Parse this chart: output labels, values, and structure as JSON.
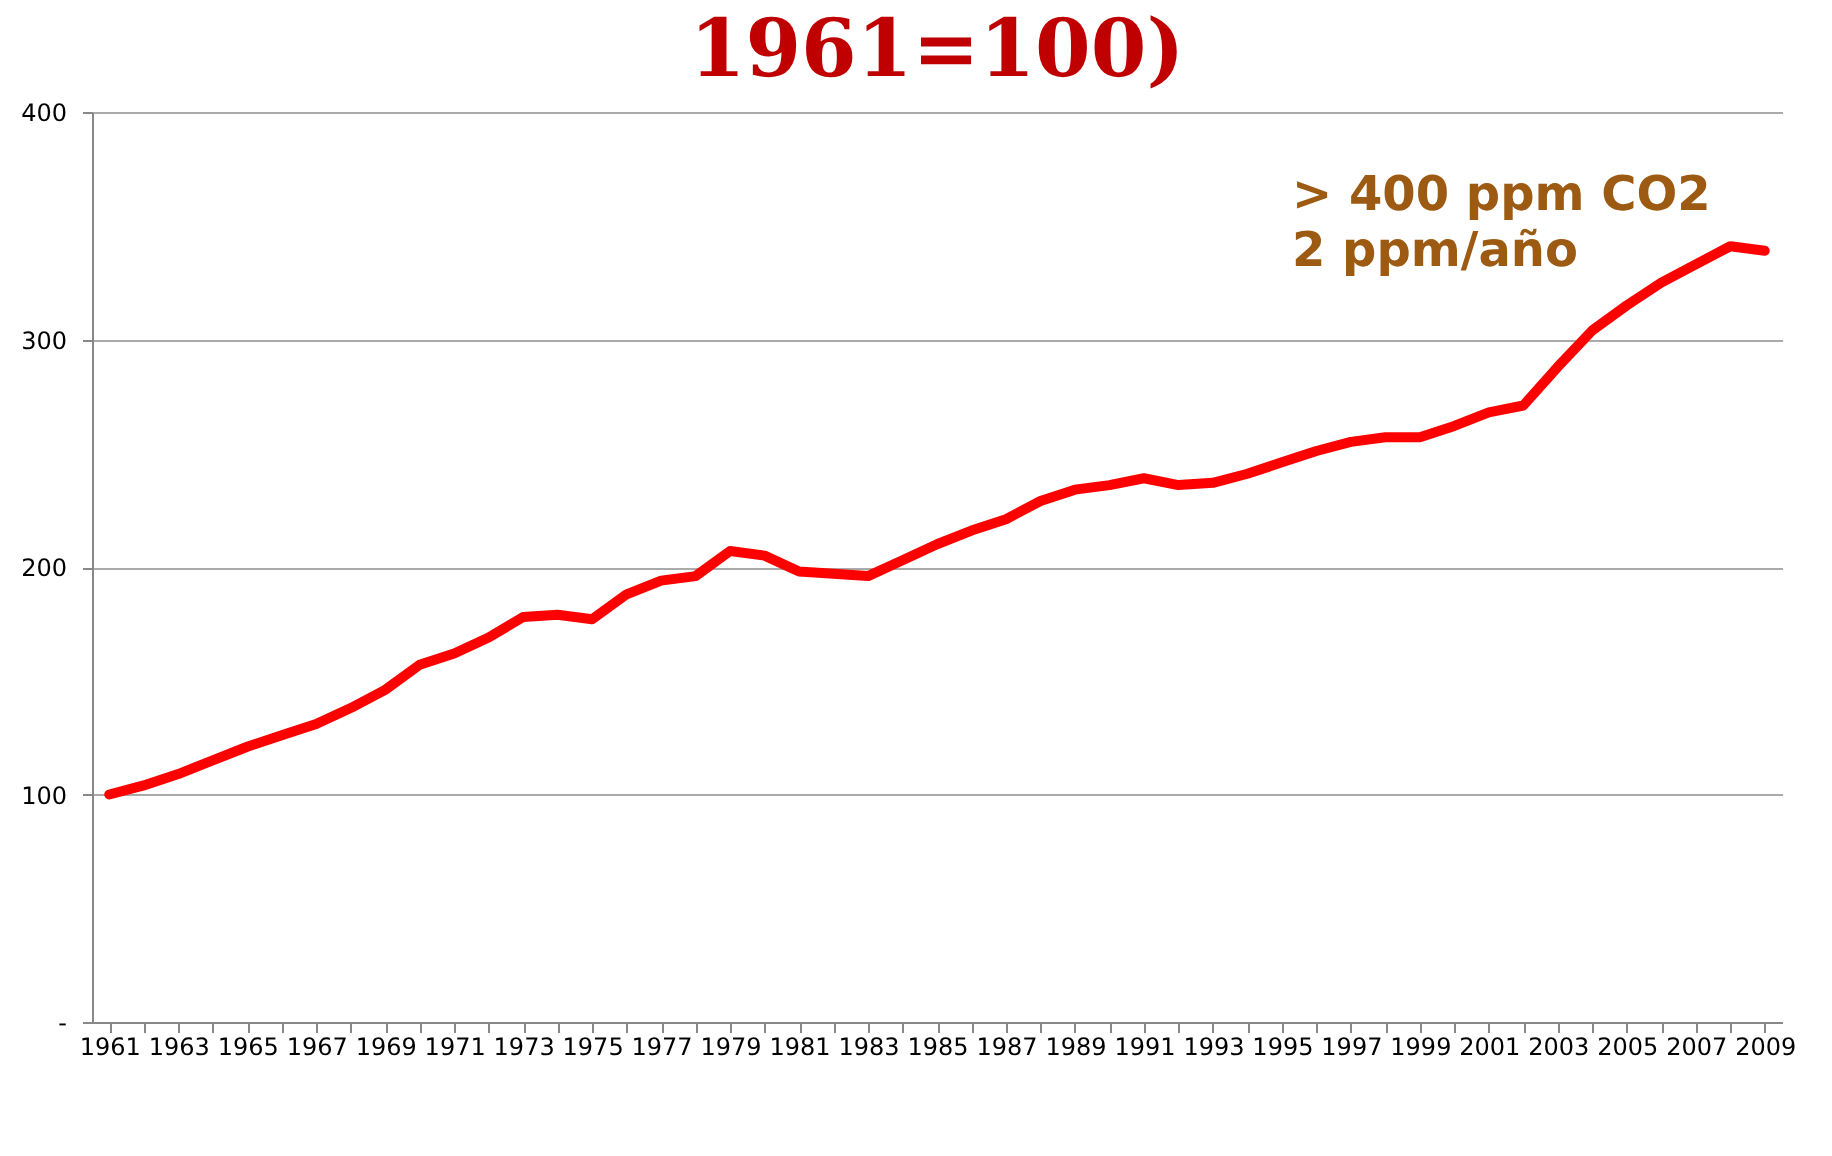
{
  "chart_data": {
    "type": "line",
    "title": "1961=100)",
    "categories": [
      "1961",
      null,
      "1963",
      null,
      "1965",
      null,
      "1967",
      null,
      "1969",
      null,
      "1971",
      null,
      "1973",
      null,
      "1975",
      null,
      "1977",
      null,
      "1979",
      null,
      "1981",
      null,
      "1983",
      null,
      "1985",
      null,
      "1987",
      null,
      "1989",
      null,
      "1991",
      null,
      "1993",
      null,
      "1995",
      null,
      "1997",
      null,
      "1999",
      null,
      "2001",
      null,
      "2003",
      null,
      "2005",
      null,
      "2007",
      null,
      "2009"
    ],
    "series": [
      {
        "color": "#ff0000",
        "values": [
          100,
          104,
          109,
          115,
          121,
          126,
          131,
          138,
          146,
          157,
          162,
          169,
          178,
          179,
          177,
          188,
          194,
          196,
          207,
          205,
          198,
          197,
          196,
          203,
          210,
          216,
          221,
          229,
          234,
          236,
          239,
          236,
          237,
          241,
          246,
          251,
          255,
          257,
          257,
          262,
          268,
          271,
          288,
          304,
          315,
          325,
          333,
          341,
          339
        ]
      }
    ],
    "ylim": [
      0,
      400
    ],
    "yticks": [
      {
        "value": 0,
        "label": "-"
      },
      100,
      200,
      300,
      400
    ],
    "grid": "y",
    "marker": "none",
    "line_style": "solid",
    "annotations": [
      "> 400 ppm  CO2",
      "2 ppm/año"
    ]
  }
}
